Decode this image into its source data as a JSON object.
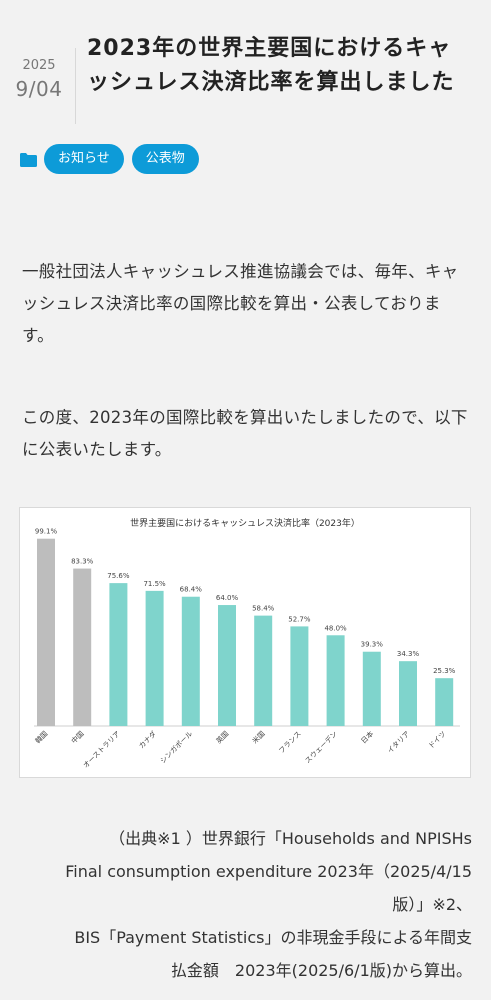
{
  "post": {
    "year": "2025",
    "month_day": "9/04",
    "title": "2023年の世界主要国におけるキャッシュレス決済比率を算出しました"
  },
  "categories": {
    "icon": "folder-icon",
    "tags": [
      "お知らせ",
      "公表物"
    ]
  },
  "body": {
    "paragraph1": "一般社団法人キャッシュレス推進協議会では、毎年、キャッシュレス決済比率の国際比較を算出・公表しております。",
    "paragraph2": "この度、2023年の国際比較を算出いたしましたので、以下に公表いたします。"
  },
  "colors": {
    "accent": "#0d9bd8",
    "bar_gray": "#bdbdbd",
    "bar_teal": "#7fd4cc"
  },
  "chart_data": {
    "type": "bar",
    "title": "世界主要国におけるキャッシュレス決済比率（2023年）",
    "categories": [
      "韓国",
      "中国",
      "オーストラリア",
      "カナダ",
      "シンガポール",
      "英国",
      "米国",
      "フランス",
      "スウェーデン",
      "日本",
      "イタリア",
      "ドイツ"
    ],
    "values": [
      99.1,
      83.3,
      75.6,
      71.5,
      68.4,
      64.0,
      58.4,
      52.7,
      48.0,
      39.3,
      34.3,
      25.3
    ],
    "value_labels": [
      "99.1%",
      "83.3%",
      "75.6%",
      "71.5%",
      "68.4%",
      "64.0%",
      "58.4%",
      "52.7%",
      "48.0%",
      "39.3%",
      "34.3%",
      "25.3%"
    ],
    "bar_colors": [
      "#bdbdbd",
      "#bdbdbd",
      "#7fd4cc",
      "#7fd4cc",
      "#7fd4cc",
      "#7fd4cc",
      "#7fd4cc",
      "#7fd4cc",
      "#7fd4cc",
      "#7fd4cc",
      "#7fd4cc",
      "#7fd4cc"
    ],
    "ylim": [
      0,
      100
    ],
    "grid": false,
    "legend": "none"
  },
  "source": {
    "line1": "（出典※1 ）世界銀行「Households and NPISHs",
    "line2": "Final consumption expenditure 2023年（2025/4/15",
    "line3": "版）」※2、",
    "line4": "BIS「Payment Statistics」の非現金手段による年間支",
    "line5": "払金額　2023年(2025/6/1版)から算出。"
  }
}
